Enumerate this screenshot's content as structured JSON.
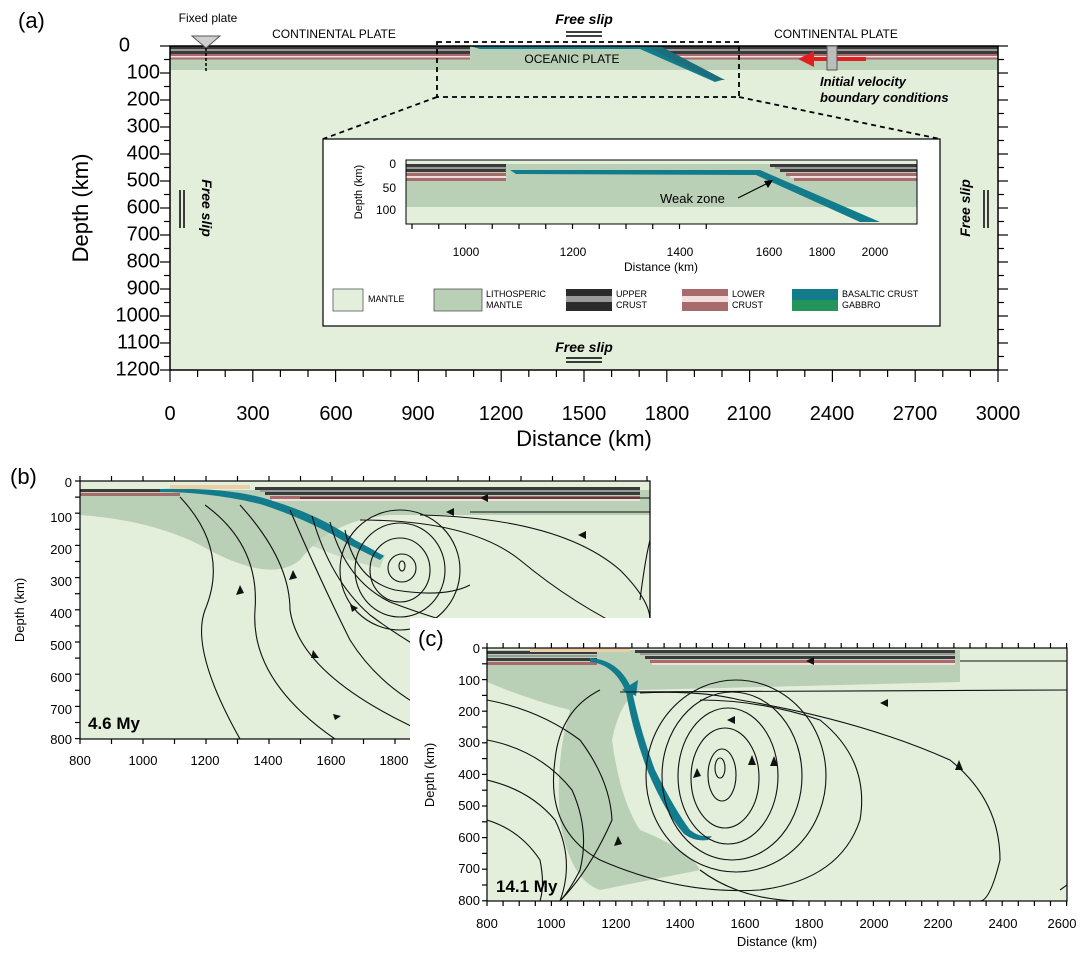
{
  "panels": {
    "a": {
      "label": "(a)",
      "xlabel": "Distance (km)",
      "ylabel": "Depth (km)",
      "x_ticks": [
        "0",
        "300",
        "600",
        "900",
        "1200",
        "1500",
        "1800",
        "2100",
        "2400",
        "2700",
        "3000"
      ],
      "y_ticks": [
        "0",
        "100",
        "200",
        "300",
        "400",
        "500",
        "600",
        "700",
        "800",
        "900",
        "1000",
        "1100",
        "1200"
      ],
      "fixed_plate": "Fixed plate",
      "continental_left": "CONTINENTAL PLATE",
      "continental_right": "CONTINENTAL PLATE",
      "oceanic": "OCEANIC PLATE",
      "free_slip_top": "Free slip",
      "free_slip_bottom": "Free slip",
      "free_slip_left": "Free slip",
      "free_slip_right": "Free slip",
      "velocity_line1": "Initial velocity",
      "velocity_line2": "boundary conditions",
      "inset": {
        "ylabel": "Depth (km)",
        "xlabel": "Distance (km)",
        "x_ticks": [
          "1000",
          "1200",
          "1400",
          "1600",
          "1800",
          "2000"
        ],
        "y_ticks": [
          "0",
          "50",
          "100"
        ],
        "weak_zone": "Weak zone"
      },
      "legend": {
        "mantle": "MANTLE",
        "litho_1": "LITHOSPERIC",
        "litho_2": "MANTLE",
        "upper_1": "UPPER",
        "upper_2": "CRUST",
        "lower_1": "LOWER",
        "lower_2": "CRUST",
        "basaltic_1": "BASALTIC CRUST",
        "basaltic_2": "GABBRO"
      }
    },
    "b": {
      "label": "(b)",
      "ylabel": "Depth (km)",
      "time": "4.6 My",
      "x_ticks": [
        "800",
        "1000",
        "1200",
        "1400",
        "1600",
        "1800"
      ],
      "y_ticks": [
        "0",
        "100",
        "200",
        "300",
        "400",
        "500",
        "600",
        "700",
        "800"
      ]
    },
    "c": {
      "label": "(c)",
      "ylabel": "Depth (km)",
      "xlabel": "Distance (km)",
      "time": "14.1 My",
      "x_ticks": [
        "800",
        "1000",
        "1200",
        "1400",
        "1600",
        "1800",
        "2000",
        "2200",
        "2400",
        "2600"
      ],
      "y_ticks": [
        "0",
        "100",
        "200",
        "300",
        "400",
        "500",
        "600",
        "700",
        "800"
      ]
    }
  },
  "colors": {
    "mantle": "#e3eedb",
    "lithospheric_mantle": "#b9cfb6",
    "upper_crust": "#3a3a3a",
    "lower_crust": "#a86b6b",
    "basaltic_crust": "#127c8c",
    "gabbro": "#23955a",
    "velocity_arrow": "#e02020",
    "sediment": "#e8cfa8"
  }
}
